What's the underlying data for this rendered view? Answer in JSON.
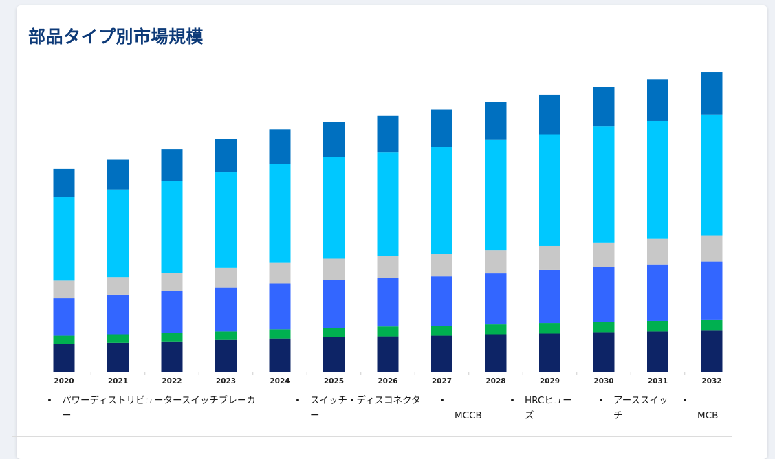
{
  "page": {
    "title": "部品タイプ別市場規模"
  },
  "chart_data": {
    "type": "bar",
    "stacked": true,
    "title": "部品タイプ別市場規模",
    "categories": [
      "2020",
      "2021",
      "2022",
      "2023",
      "2024",
      "2025",
      "2026",
      "2027",
      "2028",
      "2029",
      "2030",
      "2031",
      "2032"
    ],
    "ylim": [
      0,
      425
    ],
    "grid": false,
    "legend_position": "bottom",
    "series": [
      {
        "name": "MCB",
        "color": "#0d2466",
        "values": [
          39,
          41,
          43,
          45,
          47,
          49,
          50,
          51,
          53,
          54,
          56,
          57,
          59
        ]
      },
      {
        "name": "アーススイッチ",
        "color": "#00b050",
        "values": [
          12,
          12,
          12,
          12,
          13,
          13,
          14,
          14,
          14,
          15,
          15,
          15,
          15
        ]
      },
      {
        "name": "HRCヒューズ",
        "color": "#3366ff",
        "values": [
          53,
          56,
          59,
          62,
          65,
          68,
          69,
          70,
          72,
          75,
          77,
          80,
          82
        ]
      },
      {
        "name": "MCCB",
        "color": "#c8c8c8",
        "values": [
          25,
          25,
          26,
          28,
          29,
          30,
          31,
          32,
          33,
          34,
          35,
          36,
          37
        ]
      },
      {
        "name": "スイッチ・ディスコネクター",
        "color": "#00c8ff",
        "values": [
          118,
          124,
          130,
          135,
          140,
          144,
          147,
          151,
          156,
          158,
          164,
          167,
          171
        ]
      },
      {
        "name": "パワーディストリビュータースイッチブレーカー",
        "color": "#0070c0",
        "values": [
          40,
          42,
          45,
          47,
          49,
          50,
          51,
          53,
          54,
          56,
          56,
          59,
          60
        ]
      }
    ]
  },
  "legend": [
    {
      "name": "パワーディストリビュータースイッチブレーカー",
      "lines": [
        "パワーディストリビュータースイッチブレーカ",
        "ー"
      ]
    },
    {
      "name": "スイッチ・ディスコネクター",
      "lines": [
        "スイッチ・ディスコネクタ",
        "ー"
      ]
    },
    {
      "name": "MCCB",
      "lines": [
        "",
        "MCCB"
      ]
    },
    {
      "name": "HRCヒューズ",
      "lines": [
        "HRCヒュー",
        "ズ"
      ]
    },
    {
      "name": "アーススイッチ",
      "lines": [
        "アーススイッ",
        "チ"
      ]
    },
    {
      "name": "MCB",
      "lines": [
        "",
        "MCB"
      ]
    }
  ]
}
